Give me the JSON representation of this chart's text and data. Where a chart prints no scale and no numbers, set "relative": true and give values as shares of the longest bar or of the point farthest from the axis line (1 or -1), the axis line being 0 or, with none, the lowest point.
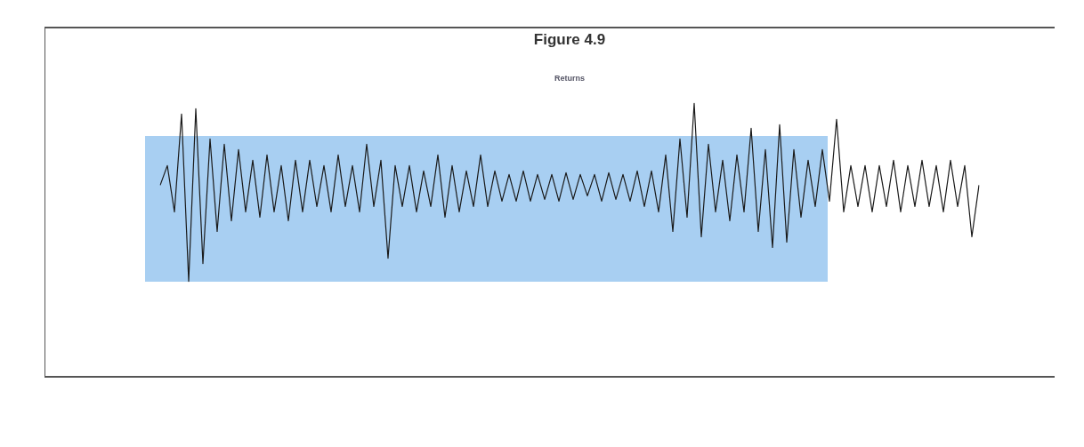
{
  "chart_data": {
    "type": "line",
    "title": "Figure 4.9",
    "subtitle": "Returns",
    "relative": true,
    "marker": "none",
    "categories": [
      null,
      null,
      null,
      null,
      null,
      null,
      null,
      null,
      null,
      null,
      null,
      null,
      null,
      null,
      null,
      null,
      null,
      null,
      null,
      null,
      null,
      null,
      null,
      null,
      null,
      null,
      null,
      null,
      null,
      null,
      null,
      null,
      null,
      null,
      null,
      null,
      null,
      null,
      null,
      null,
      null,
      null,
      null,
      null,
      null,
      null,
      null,
      null,
      null,
      null,
      null,
      null,
      null,
      null,
      null,
      null,
      null,
      null,
      null,
      null,
      null,
      null,
      null,
      null,
      null,
      null,
      null,
      null,
      null,
      null,
      null,
      null,
      null,
      null,
      null,
      null,
      null,
      null,
      null,
      null,
      null,
      null,
      null,
      null,
      null,
      null,
      null,
      null,
      null,
      null,
      null,
      null,
      null,
      null,
      null,
      null,
      null,
      null,
      null,
      null,
      null,
      null,
      null,
      null,
      null,
      null,
      null,
      null,
      null,
      null,
      null,
      null,
      null,
      null,
      null,
      null
    ],
    "series": [
      {
        "color": "#1a1a1a",
        "values": [
          0.54,
          0.65,
          0.39,
          0.94,
          0,
          0.97,
          0.1,
          0.8,
          0.28,
          0.77,
          0.34,
          0.74,
          0.39,
          0.68,
          0.36,
          0.71,
          0.39,
          0.65,
          0.34,
          0.68,
          0.39,
          0.68,
          0.42,
          0.65,
          0.39,
          0.71,
          0.42,
          0.65,
          0.39,
          0.77,
          0.42,
          0.68,
          0.13,
          0.65,
          0.42,
          0.65,
          0.39,
          0.62,
          0.42,
          0.71,
          0.36,
          0.65,
          0.39,
          0.62,
          0.42,
          0.71,
          0.42,
          0.62,
          0.45,
          0.6,
          0.45,
          0.62,
          0.45,
          0.6,
          0.46,
          0.6,
          0.45,
          0.61,
          0.46,
          0.6,
          0.48,
          0.6,
          0.45,
          0.61,
          0.46,
          0.6,
          0.45,
          0.62,
          0.42,
          0.62,
          0.39,
          0.71,
          0.28,
          0.8,
          0.36,
          1,
          0.25,
          0.77,
          0.39,
          0.68,
          0.34,
          0.71,
          0.39,
          0.86,
          0.28,
          0.74,
          0.19,
          0.88,
          0.22,
          0.74,
          0.36,
          0.68,
          0.42,
          0.74,
          0.45,
          0.91,
          0.39,
          0.65,
          0.42,
          0.65,
          0.39,
          0.65,
          0.42,
          0.68,
          0.39,
          0.65,
          0.42,
          0.68,
          0.42,
          0.65,
          0.39,
          0.68,
          0.42,
          0.65,
          0.25,
          0.54
        ]
      }
    ]
  }
}
